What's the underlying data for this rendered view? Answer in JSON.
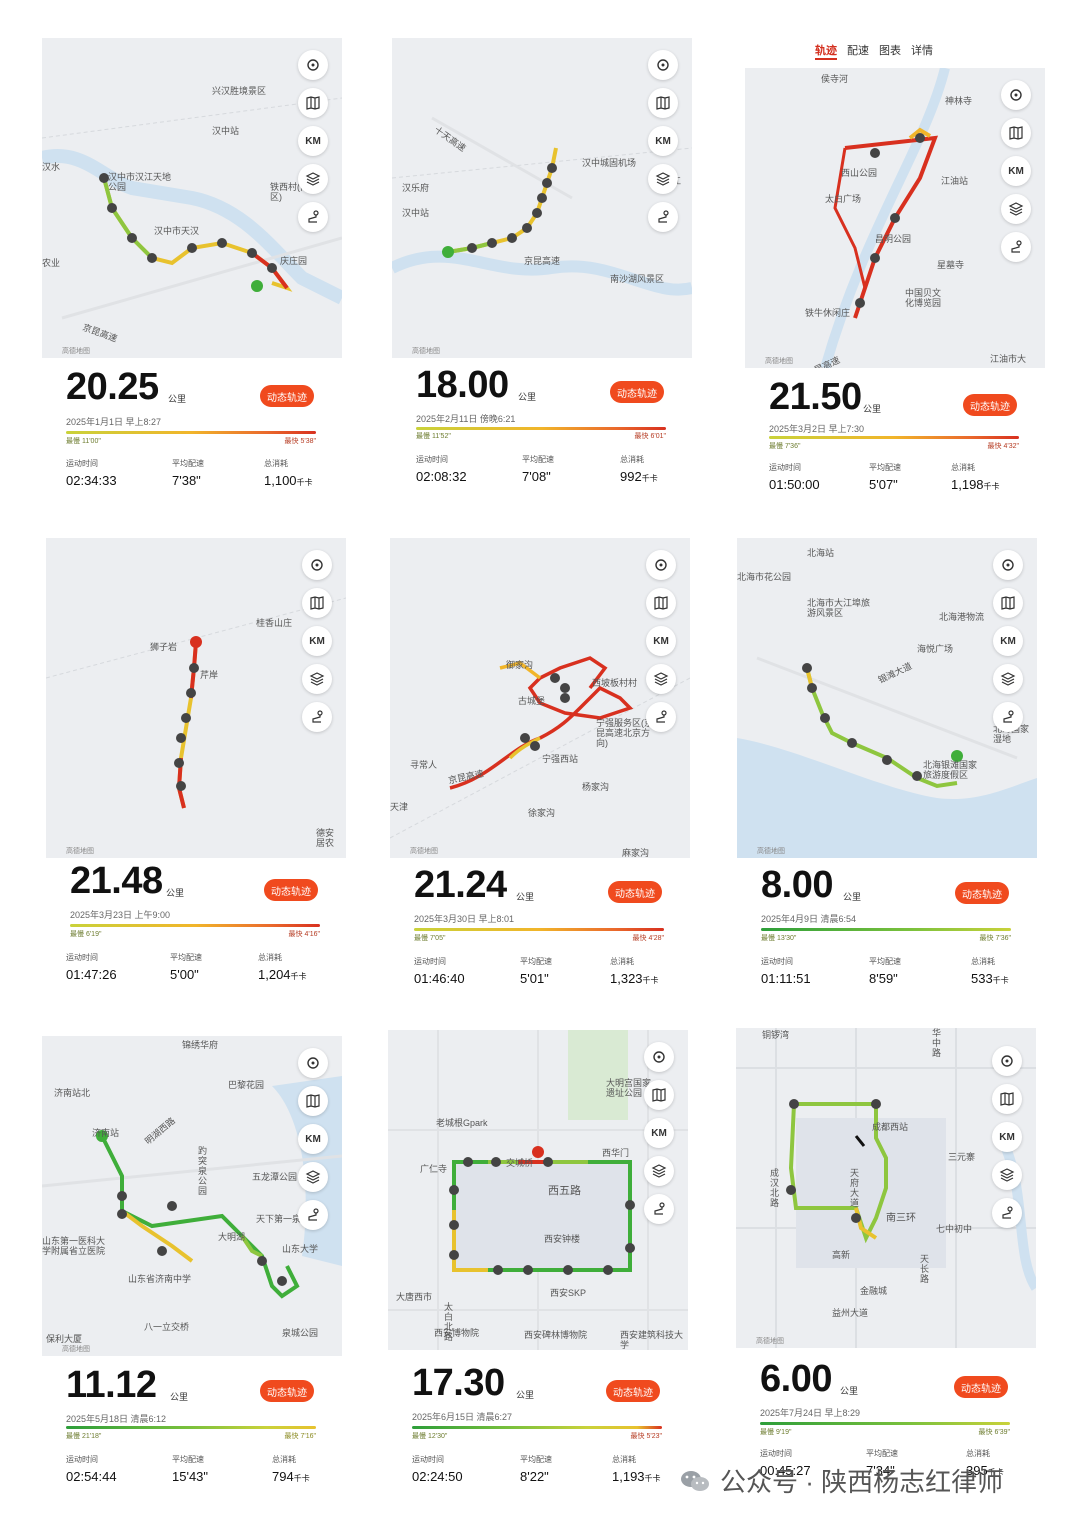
{
  "ui": {
    "follow_btn": "动态轨迹",
    "unit_km": "公里",
    "map_attrib": "高德地图",
    "lbl_time": "运动时间",
    "lbl_pace": "平均配速",
    "lbl_cal": "总消耗",
    "cal_unit": "千卡",
    "ctrl_km": "KM"
  },
  "tabs": [
    "轨迹",
    "配速",
    "图表",
    "详情"
  ],
  "cards": [
    {
      "distance": "20.25",
      "date": "2025年1月1日 早上8:27",
      "pace_slow": "最慢 11'00\"",
      "pace_fast": "最快 5'38\"",
      "time": "02:34:33",
      "pace": "7'38\"",
      "calories": "1,100",
      "labels": [
        "兴汉胜境景区",
        "汉中站",
        "汉中市汉江天地公园",
        "汉中市天汉",
        "汉水",
        "铁西村(南校区)",
        "庆庄园",
        "京昆高速",
        "农业"
      ]
    },
    {
      "distance": "18.00",
      "date": "2025年2月11日 傍晚6:21",
      "pace_slow": "最慢 11'52\"",
      "pace_fast": "最快 6'01\"",
      "time": "02:08:32",
      "pace": "7'08\"",
      "calories": "992",
      "labels": [
        "十天高速",
        "汉中城固机场",
        "汉乐府",
        "汉中站",
        "京昆高速",
        "南沙湖风景区",
        "江"
      ]
    },
    {
      "distance": "21.50",
      "date": "2025年3月2日 早上7:30",
      "pace_slow": "最慢 7'36\"",
      "pace_fast": "最快 4'32\"",
      "time": "01:50:00",
      "pace": "5'07\"",
      "calories": "1,198",
      "labels": [
        "侯寺河",
        "神林寺",
        "西山公园",
        "江油站",
        "太白广场",
        "昌明公园",
        "星墓寺",
        "中国贝文化博览园",
        "铁牛休闲庄",
        "江油市大",
        "京昆高速"
      ]
    },
    {
      "distance": "21.48",
      "date": "2025年3月23日 上午9:00",
      "pace_slow": "最慢 6'19\"",
      "pace_fast": "最快 4'16\"",
      "time": "01:47:26",
      "pace": "5'00\"",
      "calories": "1,204",
      "labels": [
        "桂香山庄",
        "狮子岩",
        "芹岸",
        "德安居农"
      ]
    },
    {
      "distance": "21.24",
      "date": "2025年3月30日 早上8:01",
      "pace_slow": "最慢 7'05\"",
      "pace_fast": "最快 4'28\"",
      "time": "01:46:40",
      "pace": "5'01\"",
      "calories": "1,323",
      "labels": [
        "御家沟",
        "西坡板村村",
        "古城堡",
        "宁强服务区(京昆高速北京方向)",
        "寻常人",
        "京昆高速",
        "宁强西站",
        "杨家沟",
        "天津",
        "徐家沟",
        "麻家沟"
      ]
    },
    {
      "distance": "8.00",
      "date": "2025年4月9日 清晨6:54",
      "pace_slow": "最慢 13'30\"",
      "pace_fast": "最快 7'36\"",
      "time": "01:11:51",
      "pace": "8'59\"",
      "calories": "533",
      "labels": [
        "北海站",
        "北海市花公园",
        "北海市大江埠旅游风景区",
        "北海港物流",
        "海悦广场",
        "银滩大道",
        "北海银滩国家旅游度假区",
        "北海国家湿地"
      ]
    },
    {
      "distance": "11.12",
      "date": "2025年5月18日 清晨6:12",
      "pace_slow": "最慢 21'18\"",
      "pace_fast": "最快 7'16\"",
      "time": "02:54:44",
      "pace": "15'43\"",
      "calories": "794",
      "labels": [
        "锦绣华府",
        "济南站北",
        "巴黎花园",
        "济南站",
        "明湖西路",
        "趵突泉公园",
        "五龙潭公园",
        "天下第一泉",
        "大明湖",
        "山东第一医科大学附属省立医院",
        "山东省济南中学",
        "山东大学",
        "八一立交桥",
        "泉城公园",
        "保利大厦"
      ]
    },
    {
      "distance": "17.30",
      "date": "2025年6月15日 清晨6:27",
      "pace_slow": "最慢 12'30\"",
      "pace_fast": "最快 5'23\"",
      "time": "02:24:50",
      "pace": "8'22\"",
      "calories": "1,193",
      "labels": [
        "大明宫国家遗址公园",
        "老城根Gpark",
        "交城桥",
        "西华门",
        "广仁寺",
        "西五路",
        "西安钟楼",
        "西安碑林博物院",
        "太白北路",
        "大唐西市",
        "西安SKP",
        "西安博物院",
        "西安建筑科技大学"
      ]
    },
    {
      "distance": "6.00",
      "date": "2025年7月24日 早上8:29",
      "pace_slow": "最慢 9'19\"",
      "pace_fast": "最快 6'39\"",
      "time": "00:45:27",
      "pace": "7'34\"",
      "calories": "395",
      "labels": [
        "铜锣湾",
        "华中路",
        "成都西站",
        "天府大道",
        "南三环",
        "七中初中",
        "三元寨",
        "高新",
        "金融城",
        "益州大道",
        "天长路",
        "成汉北路"
      ]
    }
  ],
  "watermark": "公众号 · 陕西杨志红律师",
  "colors": {
    "accent": "#f04a1e",
    "route_red": "#d8301f",
    "route_green": "#3fae3a",
    "route_yellow": "#e8c22e"
  },
  "icons": [
    "locate-icon",
    "map-icon",
    "layers-icon",
    "route-icon",
    "wechat-icon"
  ]
}
